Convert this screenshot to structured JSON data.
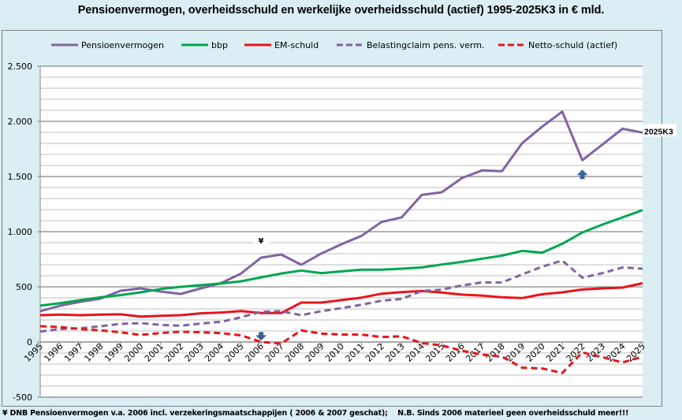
{
  "chart_data": {
    "type": "line",
    "title": "Pensioenvermogen, overheidsschuld en werkelijke overheidsschuld (actief) 1995-2025K3 in € mld.",
    "xlabel": "",
    "ylabel": "",
    "ylim": [
      -500,
      2500
    ],
    "yticks": [
      -500,
      0,
      500,
      1000,
      1500,
      2000,
      2500
    ],
    "ytick_labels": [
      "-500",
      "0",
      "500",
      "1.000",
      "1.500",
      "2.000",
      "2.500"
    ],
    "grid": true,
    "legend_position": "top",
    "categories": [
      "1995",
      "1996",
      "1997",
      "1998",
      "1999",
      "2000",
      "2001",
      "2002",
      "2003",
      "2004",
      "2005",
      "2006",
      "2007",
      "2008",
      "2009",
      "2010",
      "2011",
      "2012",
      "2013",
      "2014",
      "2015",
      "2016",
      "2017",
      "2018",
      "2019",
      "2020",
      "2021",
      "2022",
      "2023",
      "2024",
      "2025"
    ],
    "series": [
      {
        "name": "Pensioenvermogen",
        "color": "#8064a2",
        "dash": false,
        "values": [
          279,
          329,
          364,
          393,
          464,
          486,
          457,
          436,
          486,
          533,
          621,
          764,
          793,
          700,
          802,
          886,
          962,
          1088,
          1129,
          1333,
          1357,
          1486,
          1555,
          1548,
          1802,
          1952,
          2088,
          1648,
          1790,
          1933,
          1898
        ]
      },
      {
        "name": "bbp",
        "color": "#00a651",
        "dash": false,
        "values": [
          329,
          352,
          380,
          405,
          425,
          450,
          480,
          500,
          515,
          530,
          550,
          586,
          621,
          648,
          624,
          640,
          655,
          655,
          664,
          676,
          702,
          726,
          755,
          783,
          826,
          810,
          890,
          993,
          1064,
          1129,
          1195
        ]
      },
      {
        "name": "EM-schuld",
        "color": "#e8141c",
        "dash": false,
        "values": [
          243,
          248,
          243,
          248,
          251,
          231,
          238,
          243,
          260,
          267,
          281,
          262,
          262,
          357,
          357,
          379,
          402,
          438,
          452,
          462,
          448,
          429,
          421,
          405,
          398,
          433,
          450,
          476,
          486,
          493,
          533
        ]
      },
      {
        "name": "Belastingclaim pens. verm.",
        "color": "#8064a2",
        "dash": true,
        "values": [
          95,
          117,
          124,
          143,
          164,
          171,
          155,
          148,
          167,
          183,
          224,
          274,
          279,
          243,
          279,
          307,
          338,
          374,
          390,
          462,
          474,
          512,
          540,
          540,
          612,
          683,
          738,
          583,
          624,
          676,
          664
        ]
      },
      {
        "name": "Netto-schuld (actief)",
        "color": "#e8141c",
        "dash": true,
        "values": [
          143,
          136,
          117,
          105,
          88,
          64,
          81,
          93,
          88,
          81,
          60,
          0,
          -14,
          105,
          76,
          67,
          67,
          45,
          52,
          -10,
          -31,
          -79,
          -114,
          -133,
          -233,
          -240,
          -281,
          -95,
          -138,
          -186,
          -133
        ]
      }
    ],
    "annotations": [
      {
        "text": "¥",
        "year": "2006",
        "value": 900
      },
      {
        "text": "2025K3",
        "year": "2025",
        "series": "Pensioenvermogen"
      },
      {
        "marker": "down-arrow",
        "year": "2006",
        "value": 40
      },
      {
        "marker": "up-arrow",
        "year": "2022",
        "value": 1520
      }
    ]
  },
  "footer": "¥ DNB Pensioenvermogen v.a. 2006 incl. verzekeringsmaatschappijen ( 2006 & 2007 geschat);    N.B. Sinds 2006 materieel geen overheidsschuld meer!!!",
  "colors": {
    "background": "#daeef3",
    "plot": "#ffffff",
    "arrow": "#3a6496"
  }
}
